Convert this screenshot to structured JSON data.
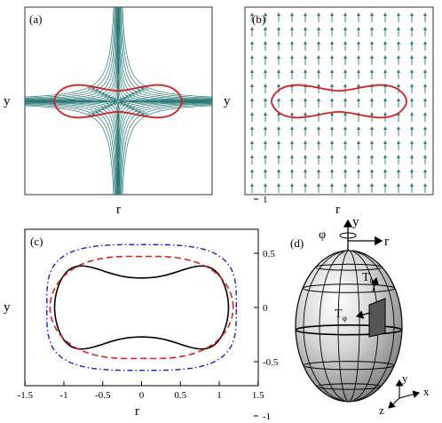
{
  "panels": {
    "a": {
      "label": "(a)",
      "xlabel": "r",
      "ylabel": "y"
    },
    "b": {
      "label": "(b)",
      "xlabel": "r",
      "ylabel": "y"
    },
    "c": {
      "label": "(c)",
      "xlabel": "r",
      "ylabel": "y",
      "xticks": [
        "-1.5",
        "-1",
        "-0.5",
        "0",
        "0.5",
        "1",
        "1.5"
      ],
      "yticks": [
        "1",
        "0.5",
        "0",
        "-0.5",
        "-1"
      ]
    },
    "d": {
      "label": "(d)",
      "axis_y": "y",
      "axis_r": "r",
      "phi": "φ",
      "t_theta": "T",
      "t_theta_sub": "θ",
      "t_phi": "T",
      "t_phi_sub": "φ",
      "triad_x": "x",
      "triad_y": "y",
      "triad_z": "z"
    }
  },
  "colors": {
    "shape": "#d62020",
    "stream": "#2a7a78",
    "black_curve": "#000000",
    "red_dashed": "#e02020",
    "blue_dashdot": "#1a1adc",
    "highlight": "#555555"
  }
}
